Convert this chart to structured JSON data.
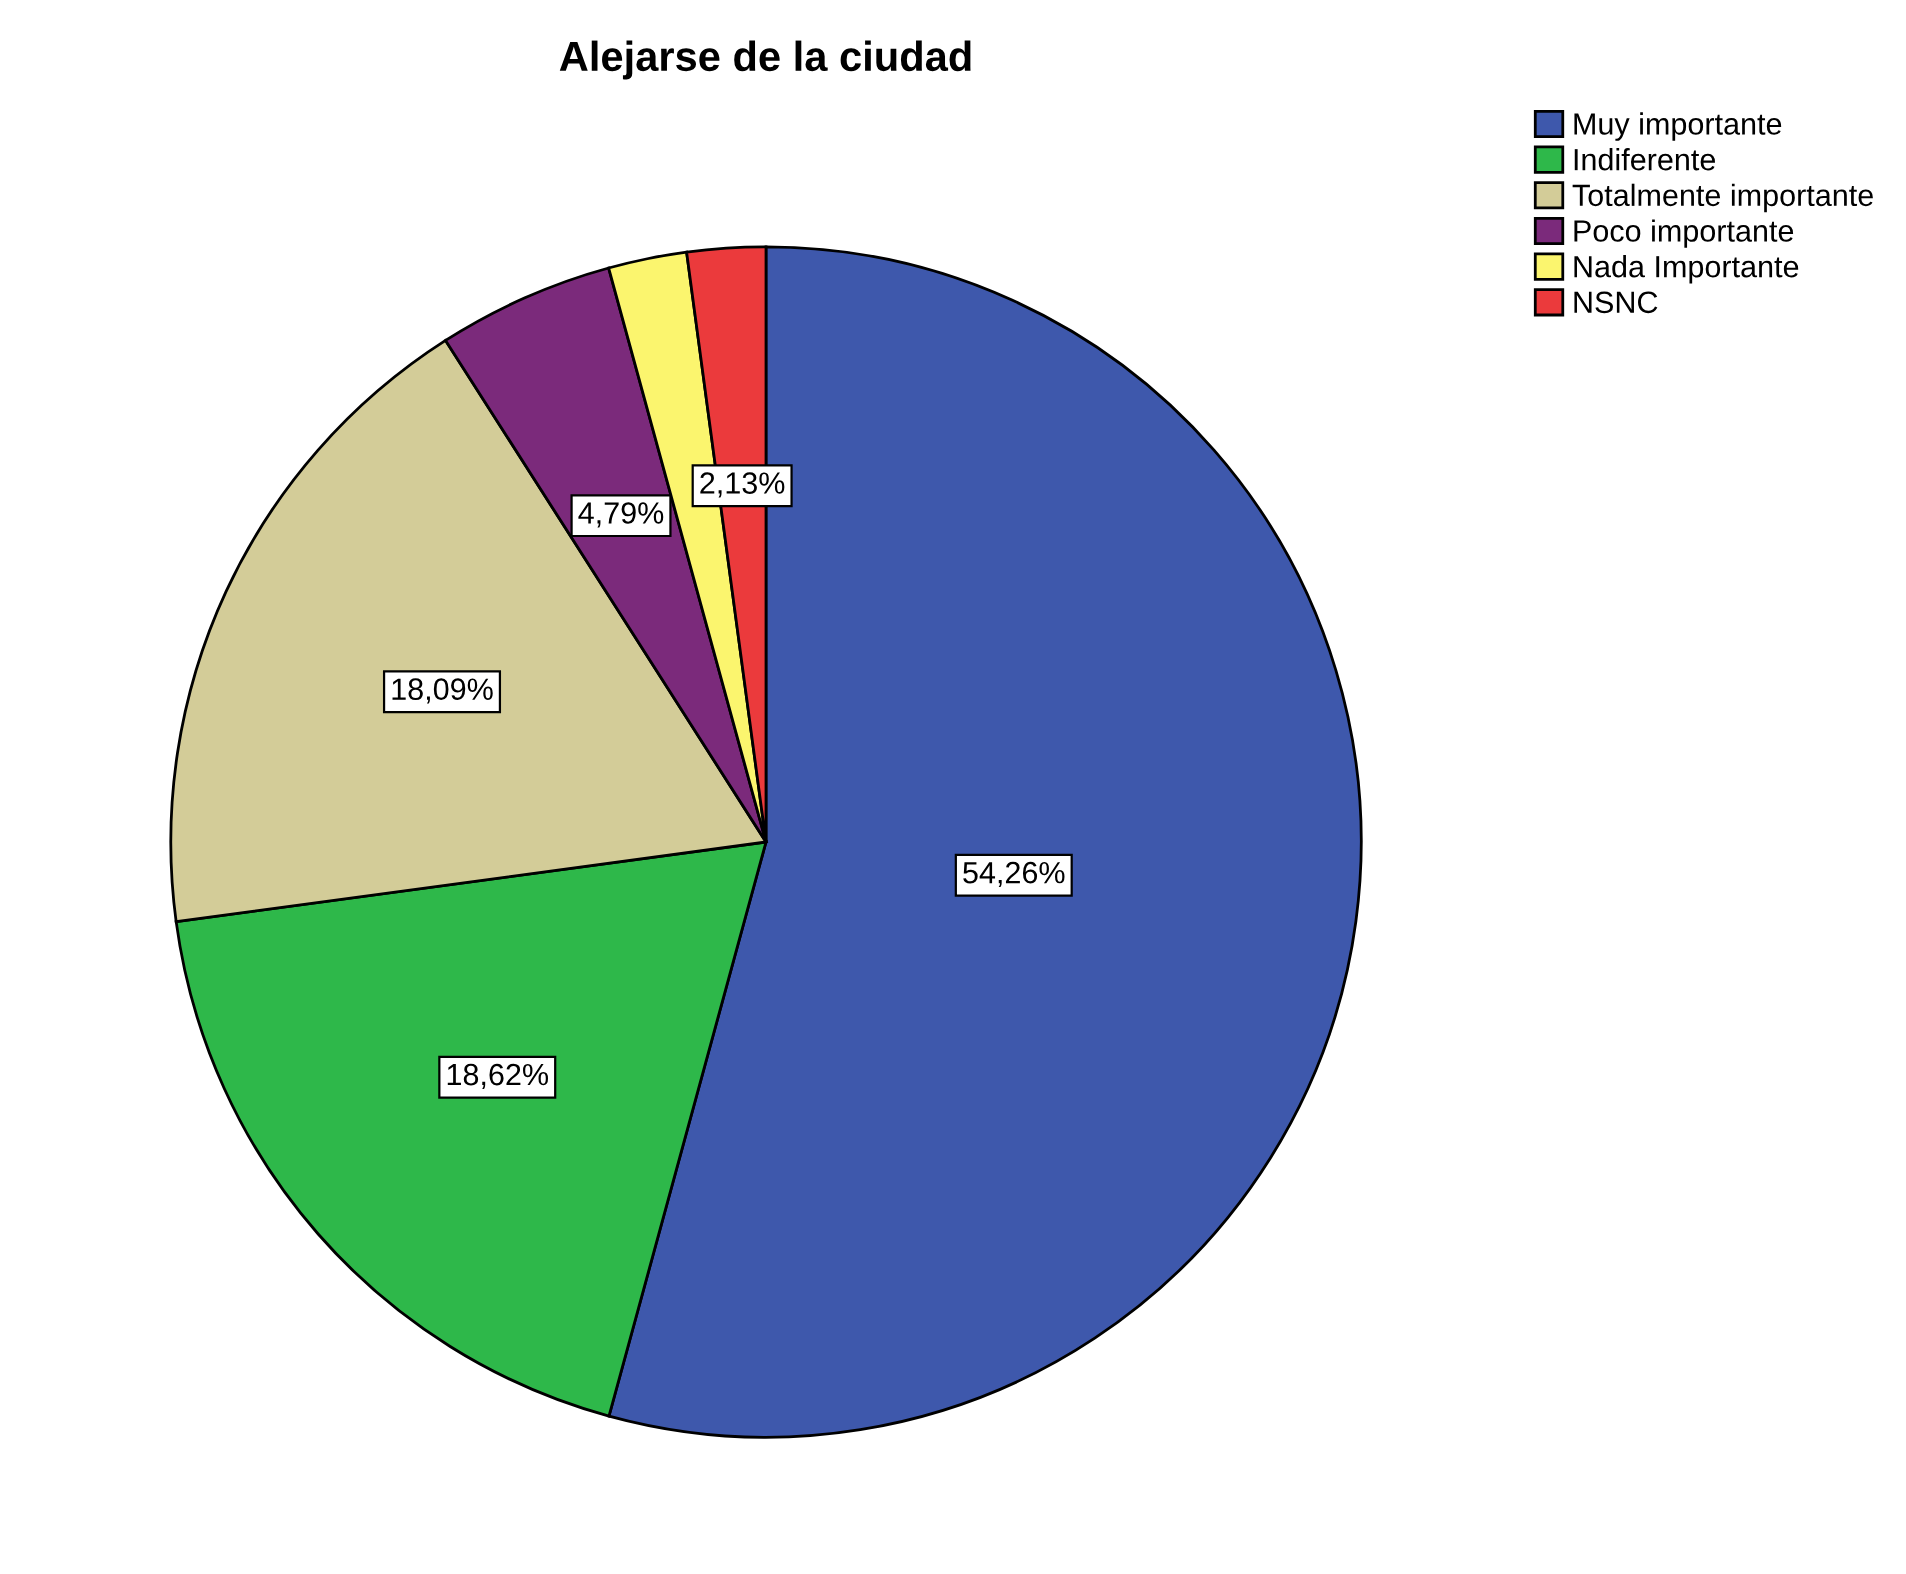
{
  "chart_data": {
    "type": "pie",
    "title": "Alejarse de la ciudad",
    "categories": [
      "Muy importante",
      "Indiferente",
      "Totalmente importante",
      "Poco importante",
      "Nada Importante",
      "NSNC"
    ],
    "values": [
      54.26,
      18.62,
      18.09,
      4.79,
      2.13,
      2.13
    ],
    "value_labels": [
      "54,26%",
      "18,62%",
      "18,09%",
      "4,79%",
      null,
      "2,13%"
    ],
    "colors": [
      "#3e58ac",
      "#2eb84a",
      "#d3cc98",
      "#7b2a7b",
      "#fbf56e",
      "#eb3a3c"
    ],
    "legend": "top right"
  }
}
